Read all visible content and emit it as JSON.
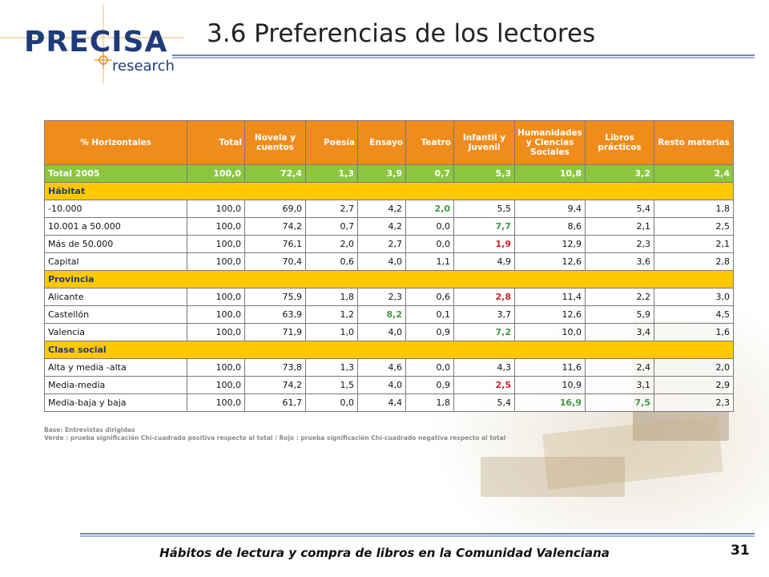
{
  "logo": {
    "word": "PRECISA",
    "sub": "research"
  },
  "title": "3.6 Preferencias de los lectores",
  "table": {
    "columns": [
      "% Horizontales",
      "Total",
      "Novela y cuentos",
      "Poesía",
      "Ensayo",
      "Teatro",
      "Infantil y Juvenil",
      "Humanidades y Ciencias Sociales",
      "Libros prácticos",
      "Resto materias"
    ],
    "total_row": [
      "Total 2005",
      "100,0",
      "72,4",
      "1,3",
      "3,9",
      "0,7",
      "5,3",
      "10,8",
      "3,2",
      "2,4"
    ],
    "sections": [
      {
        "title": "Hábitat",
        "rows": [
          [
            "-10.000",
            "100,0",
            "69,0",
            "2,7",
            "4,2",
            "2,0",
            "5,5",
            "9,4",
            "5,4",
            "1,8"
          ],
          [
            "10.001 a 50.000",
            "100,0",
            "74,2",
            "0,7",
            "4,2",
            "0,0",
            "7,7",
            "8,6",
            "2,1",
            "2,5"
          ],
          [
            "Más de 50.000",
            "100,0",
            "76,1",
            "2,0",
            "2,7",
            "0,0",
            "1,9",
            "12,9",
            "2,3",
            "2,1"
          ],
          [
            "Capital",
            "100,0",
            "70,4",
            "0,6",
            "4,0",
            "1,1",
            "4,9",
            "12,6",
            "3,6",
            "2,8"
          ]
        ]
      },
      {
        "title": "Provincia",
        "rows": [
          [
            "Alicante",
            "100,0",
            "75,9",
            "1,8",
            "2,3",
            "0,6",
            "2,8",
            "11,4",
            "2,2",
            "3,0"
          ],
          [
            "Castellón",
            "100,0",
            "63,9",
            "1,2",
            "8,2",
            "0,1",
            "3,7",
            "12,6",
            "5,9",
            "4,5"
          ],
          [
            "Valencia",
            "100,0",
            "71,9",
            "1,0",
            "4,0",
            "0,9",
            "7,2",
            "10,0",
            "3,4",
            "1,6"
          ]
        ]
      },
      {
        "title": "Clase social",
        "rows": [
          [
            "Alta y media -alta",
            "100,0",
            "73,8",
            "1,3",
            "4,6",
            "0,0",
            "4,3",
            "11,6",
            "2,4",
            "2,0"
          ],
          [
            "Media-media",
            "100,0",
            "74,2",
            "1,5",
            "4,0",
            "0,9",
            "2,5",
            "10,9",
            "3,1",
            "2,9"
          ],
          [
            "Media-baja y baja",
            "100,0",
            "61,7",
            "0,0",
            "4,4",
            "1,8",
            "5,4",
            "16,9",
            "7,5",
            "2,3"
          ]
        ]
      }
    ],
    "highlights": {
      "0-0-5": "green",
      "0-1-6": "green",
      "0-2-6": "red",
      "1-0-6": "red",
      "1-1-4": "green",
      "1-2-6": "green",
      "2-1-6": "red",
      "2-2-7": "green",
      "2-2-8": "green"
    },
    "colors": {
      "header": "#f08c1c",
      "total": "#8cc63f",
      "section": "#ffc800",
      "green": "#3e9b3e",
      "red": "#d0202a"
    }
  },
  "notes": {
    "base": "Base: Entrevistas dirigidas",
    "legend": "Verde : prueba significación  Chi-cuadrado  positiva   respecto al total  / Rojo : prueba significación  Chi-cuadrado  negativa  respecto  al total"
  },
  "footer": {
    "text": "Hábitos de lectura y compra de libros en la Comunidad Valenciana",
    "page": "31"
  }
}
